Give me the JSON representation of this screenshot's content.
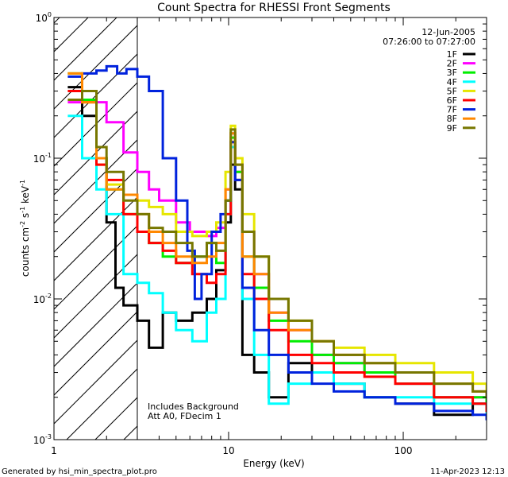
{
  "chart_data": {
    "type": "line",
    "title": "Count Spectra for RHESSI Front Segments",
    "date": "12-Jun-2005",
    "time_range": "07:26:00 to 07:27:00",
    "xlabel": "Energy (keV)",
    "ylabel": "counts cm",
    "ylabel_sup1": "-2",
    "ylabel_mid": " s",
    "ylabel_sup2": "-1",
    "ylabel_end": " keV",
    "ylabel_sup3": "-1",
    "x_scale": "log",
    "y_scale": "log",
    "xlim": [
      1,
      300
    ],
    "ylim": [
      0.001,
      1
    ],
    "x_ticks": [
      {
        "value": 1,
        "label": "1"
      },
      {
        "value": 10,
        "label": "10"
      },
      {
        "value": 100,
        "label": "100"
      }
    ],
    "y_ticks": [
      {
        "value": 1,
        "base": "10",
        "exp": "0"
      },
      {
        "value": 0.1,
        "base": "10",
        "exp": "-1"
      },
      {
        "value": 0.01,
        "base": "10",
        "exp": "-2"
      },
      {
        "value": 0.001,
        "base": "10",
        "exp": "-3"
      }
    ],
    "hatch_region_max_energy": 3,
    "annotations": [
      "Includes Background",
      "Att A0, FDecim 1"
    ],
    "footer_left": "Generated by hsi_min_spectra_plot.pro",
    "footer_right": "11-Apr-2023 12:13",
    "series": [
      {
        "name": "1F",
        "color": "#000000",
        "values": [
          [
            1.2,
            0.32
          ],
          [
            1.45,
            0.2
          ],
          [
            1.75,
            0.1
          ],
          [
            2.0,
            0.035
          ],
          [
            2.25,
            0.012
          ],
          [
            2.5,
            0.009
          ],
          [
            3.0,
            0.007
          ],
          [
            3.5,
            0.0045
          ],
          [
            4.2,
            0.008
          ],
          [
            5.0,
            0.007
          ],
          [
            6.2,
            0.008
          ],
          [
            7.5,
            0.01
          ],
          [
            8.5,
            0.016
          ],
          [
            9.6,
            0.035
          ],
          [
            10.3,
            0.09
          ],
          [
            10.9,
            0.06
          ],
          [
            12.0,
            0.004
          ],
          [
            14.0,
            0.003
          ],
          [
            17.0,
            0.002
          ],
          [
            22.0,
            0.0035
          ],
          [
            30.0,
            0.003
          ],
          [
            40.0,
            0.0025
          ],
          [
            60.0,
            0.002
          ],
          [
            90.0,
            0.0018
          ],
          [
            150.0,
            0.0015
          ],
          [
            250.0,
            0.0018
          ],
          [
            300.0,
            0.0016
          ]
        ]
      },
      {
        "name": "2F",
        "color": "#ff00ff",
        "values": [
          [
            1.2,
            0.25
          ],
          [
            1.45,
            0.3
          ],
          [
            1.75,
            0.25
          ],
          [
            2.0,
            0.18
          ],
          [
            2.5,
            0.11
          ],
          [
            3.0,
            0.08
          ],
          [
            3.5,
            0.06
          ],
          [
            4.0,
            0.05
          ],
          [
            5.0,
            0.035
          ],
          [
            6.0,
            0.03
          ],
          [
            7.5,
            0.028
          ],
          [
            8.5,
            0.032
          ],
          [
            9.6,
            0.06
          ],
          [
            10.3,
            0.15
          ],
          [
            10.9,
            0.08
          ],
          [
            12.0,
            0.03
          ],
          [
            14.0,
            0.015
          ],
          [
            17.0,
            0.008
          ],
          [
            22.0,
            0.006
          ],
          [
            30.0,
            0.004
          ],
          [
            40.0,
            0.0035
          ],
          [
            60.0,
            0.003
          ],
          [
            90.0,
            0.0025
          ],
          [
            150.0,
            0.002
          ],
          [
            250.0,
            0.002
          ],
          [
            300.0,
            0.0018
          ]
        ]
      },
      {
        "name": "3F",
        "color": "#00ee00",
        "values": [
          [
            1.2,
            0.4
          ],
          [
            1.45,
            0.26
          ],
          [
            1.75,
            0.1
          ],
          [
            2.0,
            0.06
          ],
          [
            2.5,
            0.04
          ],
          [
            3.0,
            0.03
          ],
          [
            3.5,
            0.025
          ],
          [
            4.2,
            0.02
          ],
          [
            5.0,
            0.018
          ],
          [
            6.2,
            0.02
          ],
          [
            7.5,
            0.025
          ],
          [
            8.5,
            0.018
          ],
          [
            9.6,
            0.05
          ],
          [
            10.3,
            0.14
          ],
          [
            10.9,
            0.08
          ],
          [
            12.0,
            0.02
          ],
          [
            14.0,
            0.012
          ],
          [
            17.0,
            0.007
          ],
          [
            22.0,
            0.005
          ],
          [
            30.0,
            0.004
          ],
          [
            40.0,
            0.0035
          ],
          [
            60.0,
            0.003
          ],
          [
            90.0,
            0.0025
          ],
          [
            150.0,
            0.002
          ],
          [
            250.0,
            0.002
          ],
          [
            300.0,
            0.0018
          ]
        ]
      },
      {
        "name": "4F",
        "color": "#00ffff",
        "values": [
          [
            1.2,
            0.2
          ],
          [
            1.45,
            0.1
          ],
          [
            1.75,
            0.06
          ],
          [
            2.0,
            0.04
          ],
          [
            2.5,
            0.015
          ],
          [
            3.0,
            0.013
          ],
          [
            3.5,
            0.011
          ],
          [
            4.2,
            0.008
          ],
          [
            5.0,
            0.006
          ],
          [
            6.2,
            0.005
          ],
          [
            7.5,
            0.008
          ],
          [
            8.5,
            0.01
          ],
          [
            9.6,
            0.04
          ],
          [
            10.3,
            0.12
          ],
          [
            10.9,
            0.07
          ],
          [
            12.0,
            0.01
          ],
          [
            14.0,
            0.004
          ],
          [
            17.0,
            0.0018
          ],
          [
            22.0,
            0.0025
          ],
          [
            30.0,
            0.003
          ],
          [
            40.0,
            0.0025
          ],
          [
            60.0,
            0.002
          ],
          [
            90.0,
            0.002
          ],
          [
            150.0,
            0.0018
          ],
          [
            250.0,
            0.0018
          ],
          [
            300.0,
            0.0015
          ]
        ]
      },
      {
        "name": "5F",
        "color": "#e6e600",
        "values": [
          [
            1.2,
            0.4
          ],
          [
            1.45,
            0.25
          ],
          [
            1.75,
            0.09
          ],
          [
            2.0,
            0.065
          ],
          [
            2.5,
            0.055
          ],
          [
            3.0,
            0.05
          ],
          [
            3.5,
            0.045
          ],
          [
            4.2,
            0.04
          ],
          [
            5.0,
            0.03
          ],
          [
            6.2,
            0.028
          ],
          [
            7.5,
            0.03
          ],
          [
            8.5,
            0.035
          ],
          [
            9.6,
            0.08
          ],
          [
            10.3,
            0.17
          ],
          [
            10.9,
            0.1
          ],
          [
            12.0,
            0.04
          ],
          [
            14.0,
            0.02
          ],
          [
            17.0,
            0.01
          ],
          [
            22.0,
            0.007
          ],
          [
            30.0,
            0.005
          ],
          [
            40.0,
            0.0045
          ],
          [
            60.0,
            0.004
          ],
          [
            90.0,
            0.0035
          ],
          [
            150.0,
            0.003
          ],
          [
            250.0,
            0.0025
          ],
          [
            300.0,
            0.0022
          ]
        ]
      },
      {
        "name": "6F",
        "color": "#ff0000",
        "values": [
          [
            1.2,
            0.3
          ],
          [
            1.45,
            0.25
          ],
          [
            1.75,
            0.09
          ],
          [
            2.0,
            0.07
          ],
          [
            2.5,
            0.04
          ],
          [
            3.0,
            0.03
          ],
          [
            3.5,
            0.025
          ],
          [
            4.2,
            0.022
          ],
          [
            5.0,
            0.018
          ],
          [
            6.2,
            0.015
          ],
          [
            7.5,
            0.013
          ],
          [
            8.5,
            0.015
          ],
          [
            9.6,
            0.04
          ],
          [
            10.3,
            0.13
          ],
          [
            10.9,
            0.07
          ],
          [
            12.0,
            0.015
          ],
          [
            14.0,
            0.01
          ],
          [
            17.0,
            0.006
          ],
          [
            22.0,
            0.004
          ],
          [
            30.0,
            0.0035
          ],
          [
            40.0,
            0.003
          ],
          [
            60.0,
            0.0028
          ],
          [
            90.0,
            0.0025
          ],
          [
            150.0,
            0.002
          ],
          [
            250.0,
            0.0018
          ],
          [
            300.0,
            0.0016
          ]
        ]
      },
      {
        "name": "7F",
        "color": "#0022dd",
        "values": [
          [
            1.2,
            0.38
          ],
          [
            1.45,
            0.4
          ],
          [
            1.75,
            0.42
          ],
          [
            2.0,
            0.45
          ],
          [
            2.3,
            0.4
          ],
          [
            2.6,
            0.43
          ],
          [
            3.0,
            0.38
          ],
          [
            3.5,
            0.3
          ],
          [
            4.2,
            0.1
          ],
          [
            5.0,
            0.05
          ],
          [
            5.8,
            0.022
          ],
          [
            6.4,
            0.01
          ],
          [
            7.0,
            0.015
          ],
          [
            8.0,
            0.03
          ],
          [
            9.0,
            0.04
          ],
          [
            9.6,
            0.05
          ],
          [
            10.3,
            0.13
          ],
          [
            10.9,
            0.07
          ],
          [
            12.0,
            0.012
          ],
          [
            14.0,
            0.006
          ],
          [
            17.0,
            0.004
          ],
          [
            22.0,
            0.003
          ],
          [
            30.0,
            0.0025
          ],
          [
            40.0,
            0.0022
          ],
          [
            60.0,
            0.002
          ],
          [
            90.0,
            0.0018
          ],
          [
            150.0,
            0.0016
          ],
          [
            250.0,
            0.0015
          ],
          [
            300.0,
            0.0014
          ]
        ]
      },
      {
        "name": "8F",
        "color": "#ff8800",
        "values": [
          [
            1.2,
            0.4
          ],
          [
            1.45,
            0.25
          ],
          [
            1.75,
            0.1
          ],
          [
            2.0,
            0.06
          ],
          [
            2.5,
            0.055
          ],
          [
            3.0,
            0.04
          ],
          [
            3.5,
            0.03
          ],
          [
            4.2,
            0.025
          ],
          [
            5.0,
            0.02
          ],
          [
            6.2,
            0.018
          ],
          [
            7.5,
            0.02
          ],
          [
            8.5,
            0.025
          ],
          [
            9.6,
            0.06
          ],
          [
            10.3,
            0.15
          ],
          [
            10.9,
            0.09
          ],
          [
            12.0,
            0.02
          ],
          [
            14.0,
            0.015
          ],
          [
            17.0,
            0.008
          ],
          [
            22.0,
            0.006
          ],
          [
            30.0,
            0.005
          ],
          [
            40.0,
            0.004
          ],
          [
            60.0,
            0.0035
          ],
          [
            90.0,
            0.003
          ],
          [
            150.0,
            0.0025
          ],
          [
            250.0,
            0.0022
          ],
          [
            300.0,
            0.002
          ]
        ]
      },
      {
        "name": "9F",
        "color": "#777700",
        "values": [
          [
            1.2,
            0.26
          ],
          [
            1.45,
            0.3
          ],
          [
            1.75,
            0.12
          ],
          [
            2.0,
            0.08
          ],
          [
            2.5,
            0.05
          ],
          [
            3.0,
            0.04
          ],
          [
            3.5,
            0.032
          ],
          [
            4.2,
            0.03
          ],
          [
            5.0,
            0.025
          ],
          [
            6.2,
            0.02
          ],
          [
            7.5,
            0.025
          ],
          [
            8.5,
            0.022
          ],
          [
            9.6,
            0.05
          ],
          [
            10.3,
            0.16
          ],
          [
            10.9,
            0.09
          ],
          [
            12.0,
            0.03
          ],
          [
            14.0,
            0.02
          ],
          [
            17.0,
            0.01
          ],
          [
            22.0,
            0.007
          ],
          [
            30.0,
            0.005
          ],
          [
            40.0,
            0.004
          ],
          [
            60.0,
            0.0035
          ],
          [
            90.0,
            0.003
          ],
          [
            150.0,
            0.0025
          ],
          [
            250.0,
            0.0022
          ],
          [
            300.0,
            0.002
          ]
        ]
      }
    ]
  }
}
